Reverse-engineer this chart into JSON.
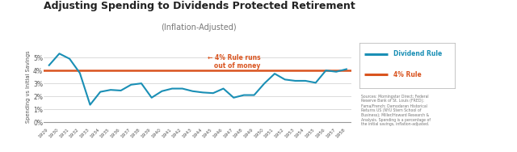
{
  "title": "Adjusting Spending to Dividends Protected Retirement",
  "subtitle": "(Inflation-Adjusted)",
  "ylabel": "Spending vs Initial Savings",
  "background_color": "#ffffff",
  "plot_bg_color": "#ffffff",
  "years": [
    1929,
    1930,
    1931,
    1932,
    1933,
    1934,
    1935,
    1936,
    1937,
    1938,
    1939,
    1940,
    1941,
    1942,
    1943,
    1944,
    1945,
    1946,
    1947,
    1948,
    1949,
    1950,
    1951,
    1952,
    1953,
    1954,
    1955,
    1956,
    1957,
    1958
  ],
  "dividend_rule": [
    4.4,
    5.3,
    4.9,
    3.8,
    1.35,
    2.35,
    2.5,
    2.45,
    2.9,
    3.0,
    1.9,
    2.4,
    2.6,
    2.6,
    2.4,
    2.3,
    2.25,
    2.6,
    1.9,
    2.1,
    2.1,
    3.0,
    3.75,
    3.3,
    3.2,
    3.2,
    3.05,
    4.0,
    3.9,
    4.1
  ],
  "four_pct_rule": 4.0,
  "dividend_color": "#1a8fb5",
  "four_pct_color": "#d9531e",
  "annotation_text": "← 4% Rule runs\n   out of money",
  "legend_labels": [
    "Dividend Rule",
    "4% Rule"
  ],
  "sources_text": "Sources: Morningstar Direct; Federal\nReserve Bank of St. Louis (FRED);\nFama/French; Damodaran Historical\nReturns US (NYU Stern School of\nBusiness); Miller/Howard Research &\nAnalysis. Spending is a percentage of\nthe initial savings, inflation-adjusted.",
  "yticks": [
    0,
    1,
    2,
    3,
    4,
    5
  ],
  "ytick_labels": [
    "0%",
    "1%",
    "2%",
    "3%",
    "4%",
    "5%"
  ],
  "ylim": [
    -0.3,
    5.8
  ]
}
